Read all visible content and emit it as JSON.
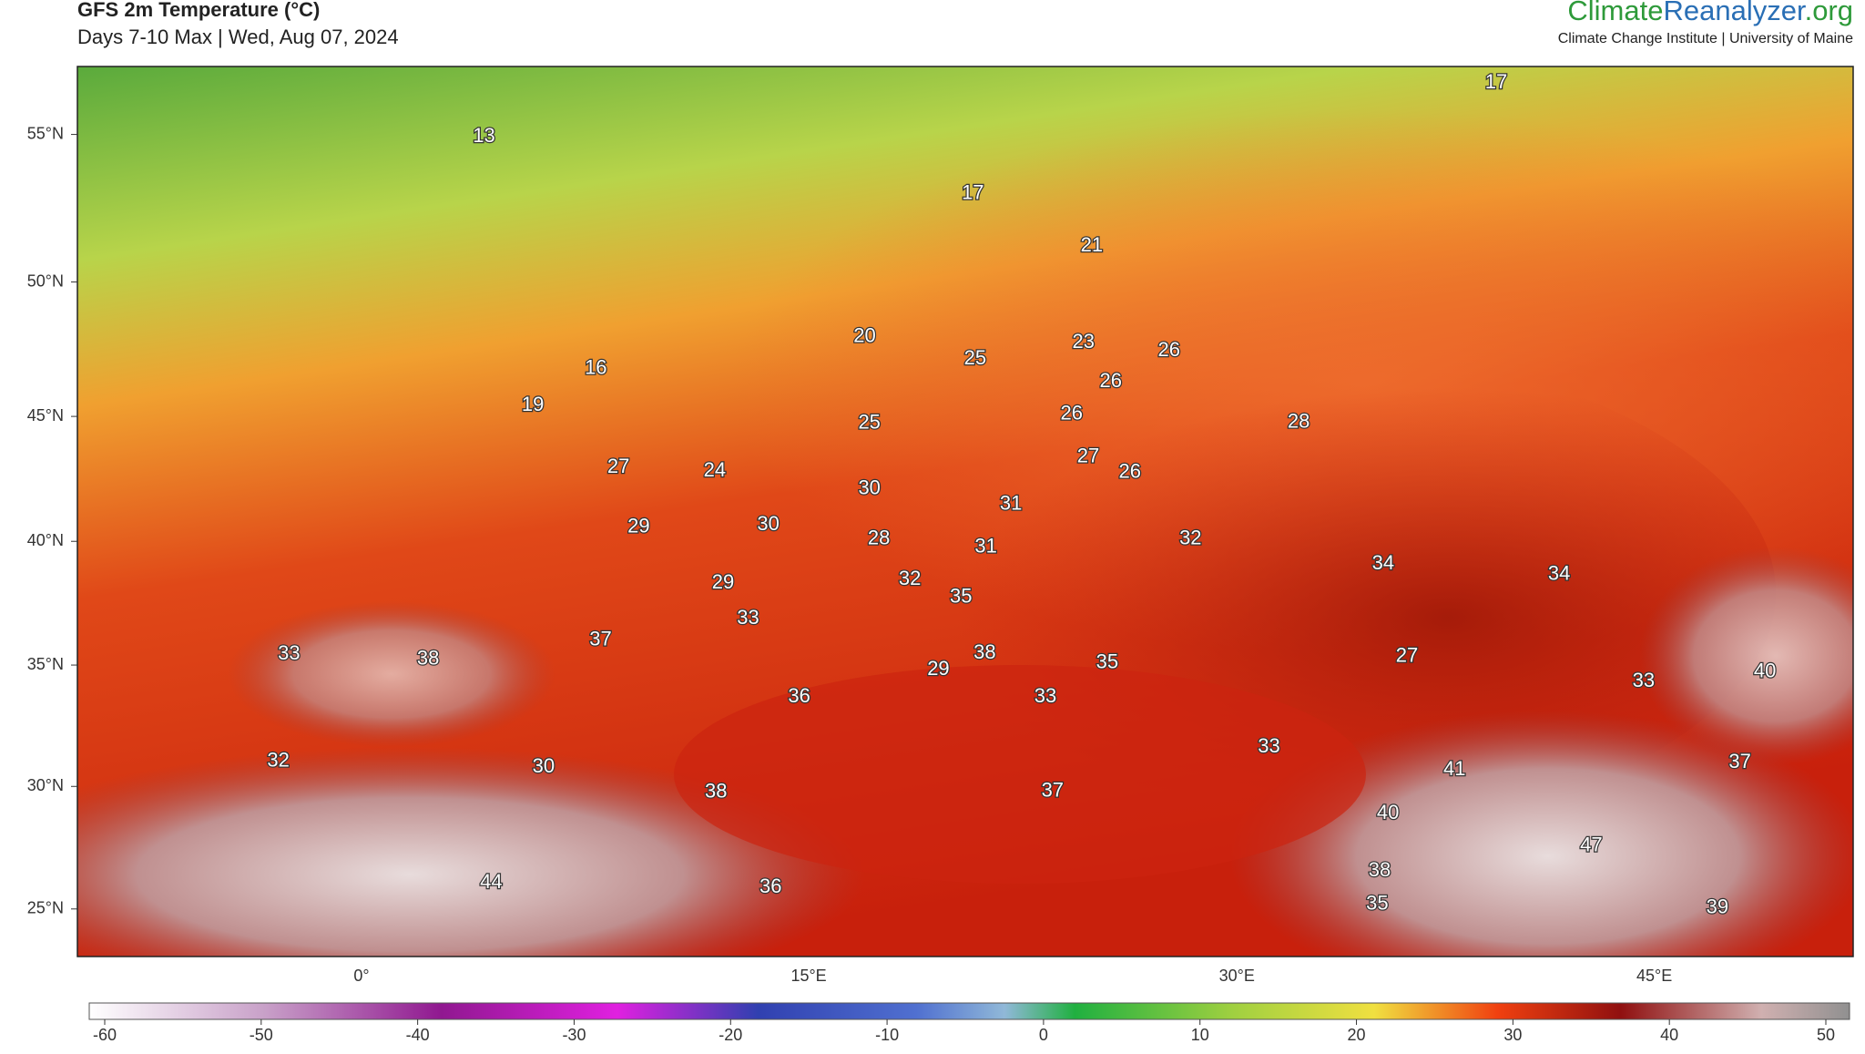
{
  "header": {
    "title": "GFS 2m Temperature (°C)",
    "subtitle": "Days 7-10 Max | Wed, Aug 07, 2024",
    "brand": [
      "Climate",
      "Reanalyzer",
      ".org"
    ],
    "tagline": "Climate Change Institute | University of Maine"
  },
  "map": {
    "lat_labels": [
      "55°N",
      "50°N",
      "45°N",
      "40°N",
      "35°N",
      "30°N",
      "25°N"
    ],
    "lon_labels": [
      "0°",
      "15°E",
      "30°E",
      "45°E"
    ],
    "labels": [
      13,
      17,
      17,
      21,
      20,
      25,
      23,
      26,
      26,
      16,
      19,
      25,
      26,
      28,
      27,
      26,
      27,
      24,
      30,
      31,
      29,
      30,
      28,
      31,
      32,
      34,
      34,
      29,
      32,
      35,
      33,
      37,
      33,
      38,
      38,
      29,
      35,
      27,
      40,
      33,
      36,
      33,
      33,
      32,
      30,
      41,
      37,
      38,
      37,
      40,
      47,
      44,
      36,
      38,
      35,
      39
    ]
  },
  "colorbar": {
    "ticks": [
      -60,
      -50,
      -40,
      -30,
      -20,
      -10,
      0,
      10,
      20,
      30,
      40,
      50
    ]
  }
}
